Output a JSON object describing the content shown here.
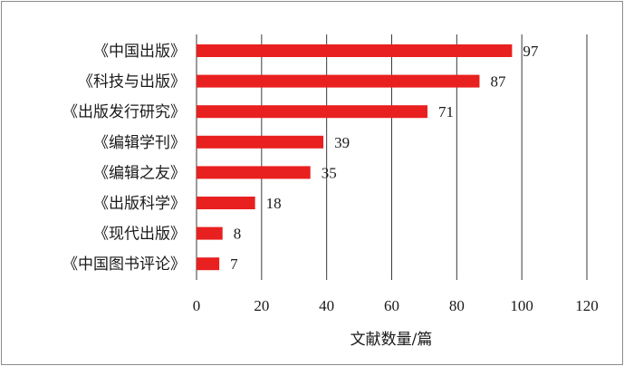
{
  "chart_data": {
    "type": "bar",
    "orientation": "horizontal",
    "categories": [
      "《中国出版》",
      "《科技与出版》",
      "《出版发行研究》",
      "《编辑学刊》",
      "《编辑之友》",
      "《出版科学》",
      "《现代出版》",
      "《中国图书评论》"
    ],
    "values": [
      97,
      87,
      71,
      39,
      35,
      18,
      8,
      7
    ],
    "xlabel": "文献数量/篇",
    "ylabel": "",
    "title": "",
    "xlim": [
      0,
      120
    ],
    "xticks": [
      "0",
      "20",
      "40",
      "60",
      "80",
      "100",
      "120"
    ],
    "grid": "vertical",
    "legend": "none",
    "bar_color": "#e8201f"
  }
}
